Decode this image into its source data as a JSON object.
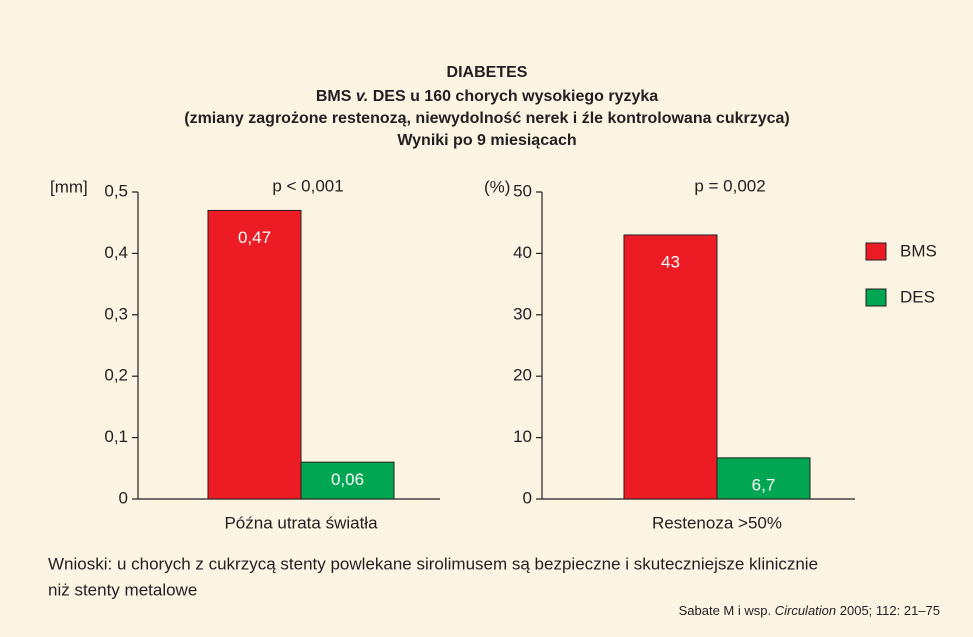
{
  "header": {
    "lines": [
      [
        "DIABETES"
      ],
      [
        "BMS ",
        "v.",
        " DES  u 160 chorych wysokiego ryzyka"
      ],
      [
        "(zmiany zagrożone restenozą, niewydolność nerek i źle kontrolowana cukrzyca)"
      ],
      [
        "Wyniki po 9 miesiącach"
      ]
    ]
  },
  "legend": {
    "items": [
      {
        "name": "BMS",
        "color": "#ed1c24"
      },
      {
        "name": "DES",
        "color": "#00a651"
      }
    ]
  },
  "chart_data": [
    {
      "type": "bar",
      "y_unit": "[mm]",
      "annotation": "p < 0,001",
      "categories": [
        "Późna utrata światła"
      ],
      "series": [
        {
          "values": [
            0.47
          ],
          "value_labels": [
            "0,47"
          ]
        },
        {
          "values": [
            0.06
          ],
          "value_labels": [
            "0,06"
          ]
        }
      ],
      "ylim": [
        0,
        0.5
      ],
      "yticks": [
        0,
        {
          "value": 0.1,
          "label": "0,1"
        },
        {
          "value": 0.2,
          "label": "0,2"
        },
        {
          "value": 0.3,
          "label": "0,3"
        },
        {
          "value": 0.4,
          "label": "0,4"
        },
        {
          "value": 0.5,
          "label": "0,5"
        }
      ]
    },
    {
      "type": "bar",
      "y_unit": "(%)",
      "annotation": "p = 0,002",
      "categories": [
        "Restenoza >50%"
      ],
      "series": [
        {
          "values": [
            43
          ],
          "value_labels": [
            "43"
          ]
        },
        {
          "values": [
            6.7
          ],
          "value_labels": [
            "6,7"
          ]
        }
      ],
      "ylim": [
        0,
        50
      ],
      "yticks": [
        0,
        10,
        20,
        30,
        40,
        50
      ]
    }
  ],
  "conclusion": {
    "lines": [
      "Wnioski: u chorych z cukrzycą stenty powlekane sirolimusem są bezpieczne i skuteczniejsze klinicznie",
      "niż stenty metalowe"
    ]
  },
  "citation": [
    "Sabate M  i wsp. ",
    "Circulation",
    " 2005; 112: 21–75"
  ]
}
